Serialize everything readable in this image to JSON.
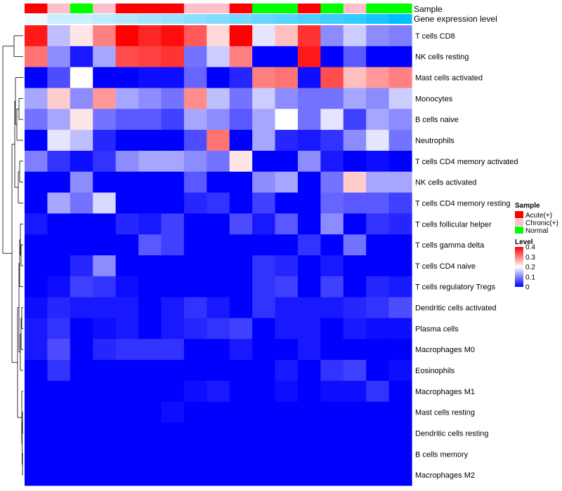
{
  "chart_data": {
    "type": "heatmap",
    "track_labels": {
      "sample": "Sample",
      "expression": "Gene expression level"
    },
    "sample_groups": [
      "Acute",
      "Chronic",
      "Normal",
      "Chronic",
      "Acute",
      "Acute",
      "Acute",
      "Chronic",
      "Chronic",
      "Acute",
      "Normal",
      "Normal",
      "Acute",
      "Normal",
      "Chronic",
      "Normal",
      "Normal"
    ],
    "expression_levels": [
      0.04,
      0.07,
      0.07,
      0.08,
      0.09,
      0.1,
      0.11,
      0.12,
      0.13,
      0.14,
      0.15,
      0.16,
      0.17,
      0.18,
      0.19,
      0.21,
      0.23
    ],
    "rows": [
      "T cells CD8",
      "NK cells resting",
      "Mast cells activated",
      "Monocytes",
      "B cells naive",
      "Neutrophils",
      "T cells CD4 memory activated",
      "NK cells activated",
      "T cells CD4 memory resting",
      "T cells follicular helper",
      "T cells gamma delta",
      "T cells CD4 naive",
      "T cells regulatory  Tregs",
      "Dendritic cells activated",
      "Plasma cells",
      "Macrophages M0",
      "Eosinophils",
      "Macrophages M1",
      "Mast cells resting",
      "Dendritic cells resting",
      "B cells memory",
      "Macrophages M2"
    ],
    "values": [
      [
        0.38,
        0.15,
        0.22,
        0.3,
        0.4,
        0.37,
        0.39,
        0.33,
        0.23,
        0.4,
        0.18,
        0.25,
        0.36,
        0.11,
        0.16,
        0.11,
        0.1
      ],
      [
        0.31,
        0.11,
        0.02,
        0.13,
        0.34,
        0.35,
        0.36,
        0.09,
        0.16,
        0.3,
        0.0,
        0.0,
        0.38,
        0.0,
        0.07,
        0.0,
        0.0
      ],
      [
        0.0,
        0.06,
        0.2,
        0.0,
        0.0,
        0.01,
        0.01,
        0.08,
        0.0,
        0.03,
        0.3,
        0.31,
        0.01,
        0.34,
        0.25,
        0.28,
        0.3
      ],
      [
        0.13,
        0.24,
        0.11,
        0.28,
        0.13,
        0.11,
        0.09,
        0.29,
        0.15,
        0.09,
        0.16,
        0.11,
        0.09,
        0.09,
        0.13,
        0.11,
        0.16
      ],
      [
        0.09,
        0.13,
        0.22,
        0.09,
        0.07,
        0.07,
        0.05,
        0.13,
        0.11,
        0.07,
        0.13,
        0.2,
        0.09,
        0.18,
        0.05,
        0.13,
        0.11
      ],
      [
        0.0,
        0.18,
        0.15,
        0.03,
        0.0,
        0.0,
        0.0,
        0.06,
        0.31,
        0.0,
        0.13,
        0.03,
        0.02,
        0.04,
        0.11,
        0.18,
        0.09
      ],
      [
        0.1,
        0.04,
        0.01,
        0.04,
        0.11,
        0.13,
        0.13,
        0.11,
        0.09,
        0.22,
        0.0,
        0.0,
        0.11,
        0.02,
        0.0,
        0.01,
        0.0
      ],
      [
        0.0,
        0.0,
        0.11,
        0.0,
        0.0,
        0.0,
        0.0,
        0.07,
        0.0,
        0.0,
        0.11,
        0.13,
        0.0,
        0.09,
        0.24,
        0.13,
        0.13
      ],
      [
        0.0,
        0.13,
        0.09,
        0.17,
        0.0,
        0.0,
        0.0,
        0.03,
        0.04,
        0.0,
        0.05,
        0.0,
        0.0,
        0.08,
        0.07,
        0.07,
        0.05
      ],
      [
        0.02,
        0.0,
        0.0,
        0.0,
        0.03,
        0.02,
        0.05,
        0.0,
        0.0,
        0.06,
        0.02,
        0.07,
        0.0,
        0.11,
        0.0,
        0.04,
        0.03
      ],
      [
        0.0,
        0.0,
        0.0,
        0.0,
        0.0,
        0.07,
        0.05,
        0.0,
        0.0,
        0.0,
        0.0,
        0.0,
        0.04,
        0.0,
        0.09,
        0.0,
        0.0
      ],
      [
        0.0,
        0.0,
        0.03,
        0.11,
        0.0,
        0.0,
        0.0,
        0.0,
        0.0,
        0.0,
        0.04,
        0.03,
        0.0,
        0.02,
        0.0,
        0.0,
        0.0
      ],
      [
        0.0,
        0.01,
        0.05,
        0.04,
        0.01,
        0.0,
        0.0,
        0.0,
        0.0,
        0.0,
        0.04,
        0.05,
        0.0,
        0.05,
        0.0,
        0.03,
        0.02
      ],
      [
        0.01,
        0.03,
        0.02,
        0.02,
        0.02,
        0.0,
        0.02,
        0.04,
        0.02,
        0.0,
        0.04,
        0.02,
        0.02,
        0.02,
        0.03,
        0.04,
        0.06
      ],
      [
        0.02,
        0.04,
        0.0,
        0.01,
        0.02,
        0.0,
        0.02,
        0.03,
        0.04,
        0.05,
        0.0,
        0.02,
        0.02,
        0.0,
        0.02,
        0.01,
        0.01
      ],
      [
        0.02,
        0.06,
        0.0,
        0.03,
        0.04,
        0.04,
        0.04,
        0.0,
        0.0,
        0.02,
        0.0,
        0.0,
        0.02,
        0.0,
        0.0,
        0.0,
        0.0
      ],
      [
        0.0,
        0.04,
        0.0,
        0.0,
        0.0,
        0.0,
        0.0,
        0.0,
        0.0,
        0.0,
        0.0,
        0.02,
        0.0,
        0.04,
        0.05,
        0.0,
        0.01
      ],
      [
        0.0,
        0.0,
        0.0,
        0.0,
        0.0,
        0.0,
        0.0,
        0.01,
        0.02,
        0.0,
        0.0,
        0.01,
        0.0,
        0.01,
        0.01,
        0.04,
        0.0
      ],
      [
        0.0,
        0.0,
        0.0,
        0.0,
        0.0,
        0.0,
        0.01,
        0.0,
        0.0,
        0.0,
        0.0,
        0.0,
        0.0,
        0.0,
        0.0,
        0.0,
        0.0
      ],
      [
        0.0,
        0.0,
        0.0,
        0.0,
        0.0,
        0.0,
        0.0,
        0.0,
        0.0,
        0.0,
        0.0,
        0.0,
        0.0,
        0.0,
        0.0,
        0.0,
        0.0
      ],
      [
        0.0,
        0.0,
        0.0,
        0.0,
        0.0,
        0.0,
        0.0,
        0.0,
        0.0,
        0.0,
        0.0,
        0.0,
        0.0,
        0.0,
        0.0,
        0.0,
        0.0
      ],
      [
        0.0,
        0.0,
        0.0,
        0.0,
        0.0,
        0.0,
        0.0,
        0.0,
        0.0,
        0.0,
        0.0,
        0.0,
        0.0,
        0.0,
        0.0,
        0.0,
        0.0
      ]
    ],
    "value_range": [
      0,
      0.4
    ],
    "legend": {
      "sample_title": "Sample",
      "sample_items": [
        {
          "label": "Acute(+)",
          "color": "#ff0000"
        },
        {
          "label": "Chronic(+)",
          "color": "#ffc0cb"
        },
        {
          "label": "Normal",
          "color": "#00ff00"
        }
      ],
      "level_title": "Level",
      "level_ticks": [
        {
          "value": 0.4,
          "label": "0.4"
        },
        {
          "value": 0.3,
          "label": "0.3"
        },
        {
          "value": 0.2,
          "label": "0.2"
        },
        {
          "value": 0.1,
          "label": "0.1"
        },
        {
          "value": 0.0,
          "label": "0"
        }
      ]
    },
    "colors": {
      "low": "#0000ff",
      "mid": "#ffffff",
      "high": "#ff0000",
      "sample": {
        "Acute": "#ff0000",
        "Chronic": "#ffc0cb",
        "Normal": "#00ff00"
      },
      "expression_low": "#f0f8ff",
      "expression_high": "#00bfff",
      "dendrogram": "#000000"
    }
  }
}
